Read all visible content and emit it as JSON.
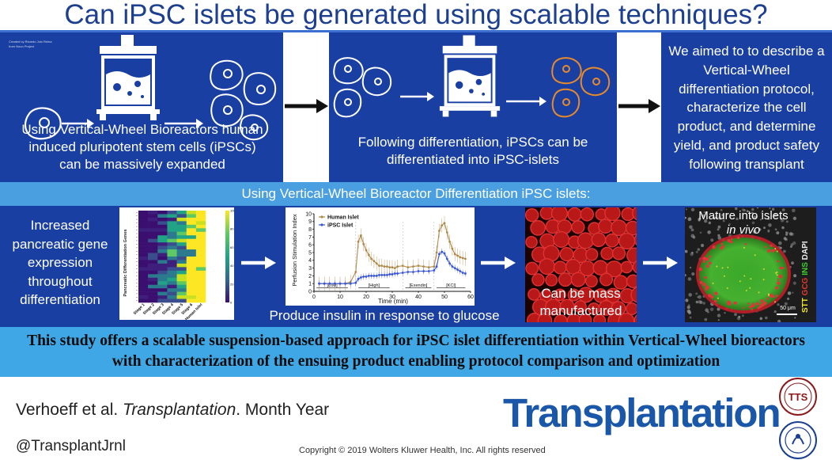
{
  "title": "Can iPSC islets be generated using scalable techniques?",
  "credit_line1": "Created by Ricardo Jolo Reina",
  "credit_line2": "from Noun Project",
  "panel1_text": "Using Vertical-Wheel Bioreactors human induced pluripotent stem cells (iPSCs) can be massively expanded",
  "panel2_text": "Following differentiation, iPSCs can be differentiated into iPSC-islets",
  "panel3_text": "We aimed to to describe a Vertical-Wheel differentiation protocol, characterize the cell product, and determine yield, and product safety following transplant",
  "band_text": "Using Vertical-Wheel Bioreactor Differentiation iPSC islets:",
  "gene_text": "Increased pancreatic gene expression throughout differentiation",
  "insulin_caption": "Produce insulin in response to glucose",
  "mass_text": "Can be mass manufactured",
  "islets_line1": "Mature into islets",
  "islets_line2": "in vivo",
  "stain": {
    "stt": "STT",
    "gcg": "GCG",
    "ins": "INS",
    "dapi": "DAPI"
  },
  "scale_bar": "50 μm",
  "conclusion": "This study offers a scalable suspension-based approach for iPSC islet differentiation within Vertical-Wheel bioreactors with characterization of the ensuing product enabling protocol comparison and optimization",
  "citation_authors": "Verhoeff et al. ",
  "citation_journal": "Transplantation",
  "citation_date": ". Month Year",
  "twitter": "@TransplantJrnl",
  "copyright": "Copyright © 2019 Wolters Kluwer Health, Inc. All rights reserved",
  "logo_text": "Transplantation",
  "logo_mark": "®",
  "seal1_text": "TTS",
  "heatmap": {
    "ylabel": "Pancreatic Differentiation Genes",
    "stages": [
      "Stage 1",
      "Stage 2",
      "Stage 3",
      "Stage 4",
      "Stage 5",
      "Stage 6",
      "Human Islet"
    ],
    "colorbar_ticks": [
      "100",
      "80",
      "60",
      "40",
      "20",
      "0"
    ]
  },
  "colors": {
    "panel": "#1a3fa3",
    "band": "#4a9fe0",
    "bottom": "#3fa7e6",
    "title": "#1d3f8f",
    "human": "#b08a4a",
    "ipsc": "#3a55d6"
  },
  "chart_data": {
    "type": "line",
    "xlabel": "Time (min)",
    "ylabel": "Perfusion Stimulation Index",
    "xlim": [
      0,
      60
    ],
    "ylim": [
      0,
      10
    ],
    "xticks": [
      0,
      10,
      20,
      30,
      40,
      50,
      60
    ],
    "yticks": [
      0,
      1,
      2,
      3,
      4,
      5,
      6,
      7,
      8,
      9,
      10
    ],
    "phase_labels": [
      "[Low]",
      "[High]",
      "[Exendin]",
      "[KCl]"
    ],
    "legend_position": "top-left",
    "series": [
      {
        "name": "Human Islet",
        "x": [
          2,
          4,
          6,
          8,
          10,
          12,
          14,
          16,
          17,
          18,
          19,
          20,
          21,
          22,
          23,
          24,
          25,
          26,
          27,
          28,
          29,
          30,
          31,
          32,
          34,
          36,
          38,
          40,
          42,
          44,
          46,
          47,
          48,
          49,
          50,
          51,
          52,
          53,
          54,
          55,
          56,
          57,
          58
        ],
        "values": [
          1,
          1,
          1,
          1,
          1,
          1,
          1.2,
          2.5,
          6.4,
          7.2,
          6.1,
          5.3,
          4.7,
          4.2,
          3.9,
          3.6,
          3.3,
          3.3,
          3.2,
          3.2,
          3.1,
          3.1,
          3.0,
          3.2,
          3.3,
          3.1,
          3.2,
          3.3,
          3.2,
          3.1,
          3.2,
          5.0,
          7.8,
          8.5,
          8.8,
          7.6,
          6.4,
          5.5,
          4.8,
          4.6,
          4.4,
          4.3,
          4.2
        ]
      },
      {
        "name": "iPSC Islet",
        "x": [
          2,
          4,
          6,
          8,
          10,
          12,
          14,
          16,
          17,
          18,
          19,
          20,
          21,
          22,
          23,
          24,
          25,
          26,
          27,
          28,
          29,
          30,
          31,
          32,
          34,
          36,
          38,
          40,
          42,
          44,
          46,
          47,
          48,
          49,
          50,
          51,
          52,
          53,
          54,
          55,
          56,
          57,
          58
        ],
        "values": [
          1,
          1,
          1,
          1,
          1,
          1,
          1,
          1.1,
          1.6,
          1.8,
          1.9,
          1.9,
          2.0,
          2.0,
          2.0,
          2.0,
          2.1,
          2.1,
          2.1,
          2.1,
          2.2,
          2.2,
          2.3,
          2.3,
          2.4,
          2.5,
          2.5,
          2.6,
          2.6,
          2.6,
          2.7,
          3.2,
          4.8,
          5.1,
          4.9,
          4.2,
          3.6,
          3.2,
          3.0,
          2.8,
          2.6,
          2.4,
          2.3
        ]
      }
    ]
  }
}
